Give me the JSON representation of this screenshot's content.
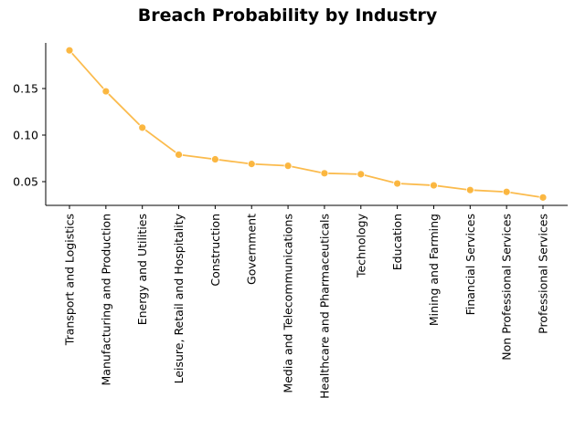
{
  "chart_data": {
    "type": "line",
    "title": "Breach Probability by Industry",
    "xlabel": "",
    "ylabel": "",
    "categories": [
      "Transport and Logistics",
      "Manufacturing and Production",
      "Energy and Utilities",
      "Leisure, Retail and Hospitality",
      "Construction",
      "Government",
      "Media and Telecommunications",
      "Healthcare and Pharmaceuticals",
      "Technology",
      "Education",
      "Mining and Farming",
      "Financial Services",
      "Non Professional Services",
      "Professional Services"
    ],
    "values": [
      0.191,
      0.147,
      0.108,
      0.079,
      0.074,
      0.069,
      0.067,
      0.059,
      0.058,
      0.048,
      0.046,
      0.041,
      0.039,
      0.033
    ],
    "yticks": [
      "0.05",
      "0.10",
      "0.15"
    ],
    "ylim": [
      0.024,
      0.199
    ],
    "grid": false,
    "legend": null,
    "line_color": "#FBB43A",
    "marker": "circle"
  }
}
